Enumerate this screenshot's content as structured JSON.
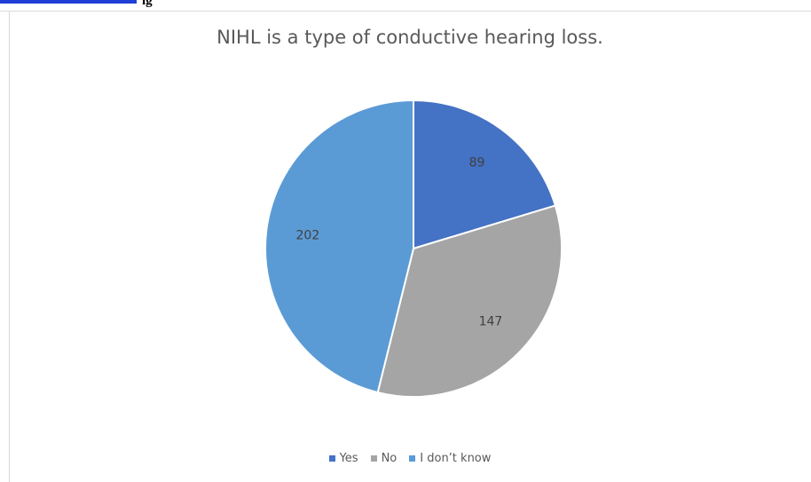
{
  "header_fragment": "ig",
  "chart_data": {
    "type": "pie",
    "title": "NIHL is a type of conductive hearing loss.",
    "categories": [
      "Yes",
      "No",
      "I don’t know"
    ],
    "values": [
      89,
      147,
      202
    ],
    "colors": [
      "#4472c4",
      "#a5a5a5",
      "#5b9bd5"
    ],
    "data_labels": [
      "89",
      "147",
      "202"
    ],
    "legend_position": "bottom",
    "start_angle": "12 o'clock",
    "direction": "clockwise"
  }
}
